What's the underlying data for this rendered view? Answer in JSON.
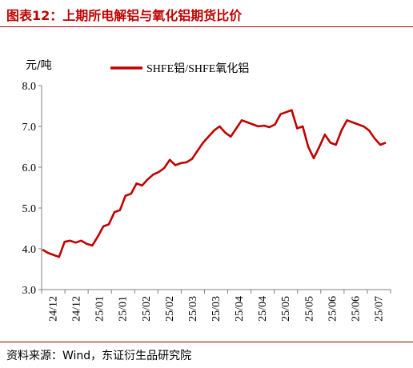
{
  "figure": {
    "title": "图表12：上期所电解铝与氧化铝期货比价",
    "source": "资料来源：Wind，东证衍生品研究院"
  },
  "colors": {
    "series": "#c00000",
    "rule": "#9a0000",
    "axis": "#808080"
  },
  "chart_data": {
    "type": "line",
    "title": "图表12：上期所电解铝与氧化铝期货比价",
    "ylabel": "元/吨",
    "xlabel": "",
    "ylim": [
      3.0,
      8.0
    ],
    "yticks": [
      "3.0",
      "4.0",
      "5.0",
      "6.0",
      "7.0",
      "8.0"
    ],
    "xticks": [
      "24/12",
      "24/12",
      "25/01",
      "25/01",
      "25/02",
      "25/02",
      "25/03",
      "25/03",
      "25/04",
      "25/04",
      "25/05",
      "25/05",
      "25/06",
      "25/06",
      "25/07"
    ],
    "legend": "top-center",
    "grid": false,
    "series": [
      {
        "name": "SHFE铝/SHFE氧化铝",
        "values": [
          3.98,
          3.9,
          3.85,
          3.8,
          4.17,
          4.2,
          4.15,
          4.2,
          4.12,
          4.08,
          4.3,
          4.55,
          4.6,
          4.9,
          4.95,
          5.3,
          5.35,
          5.6,
          5.55,
          5.7,
          5.82,
          5.88,
          5.98,
          6.18,
          6.05,
          6.1,
          6.12,
          6.2,
          6.4,
          6.6,
          6.75,
          6.9,
          7.0,
          6.85,
          6.75,
          6.95,
          7.15,
          7.1,
          7.05,
          7.0,
          7.02,
          6.98,
          7.05,
          7.3,
          7.35,
          7.4,
          6.95,
          7.0,
          6.5,
          6.22,
          6.5,
          6.8,
          6.6,
          6.55,
          6.9,
          7.15,
          7.1,
          7.05,
          7.0,
          6.9,
          6.7,
          6.55,
          6.6
        ]
      }
    ]
  }
}
